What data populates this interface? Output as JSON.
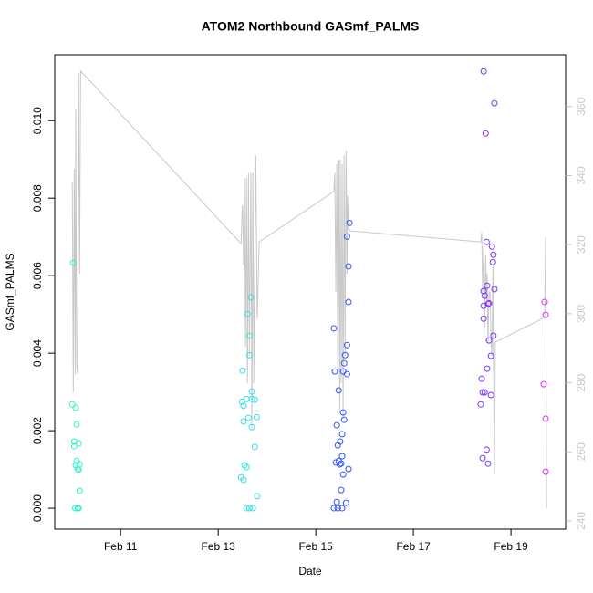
{
  "chart_data": {
    "type": "scatter",
    "title": "ATOM2 Northbound GASmf_PALMS",
    "xlabel": "Date",
    "ylabel": "GASmf_PALMS",
    "xlim": [
      9.65,
      20.12
    ],
    "ylim": [
      -0.00054,
      0.0117
    ],
    "y2lim": [
      237.6,
      375.0
    ],
    "xticks": [
      {
        "value": 11,
        "label": "Feb 11"
      },
      {
        "value": 13,
        "label": "Feb 13"
      },
      {
        "value": 15,
        "label": "Feb 15"
      },
      {
        "value": 17,
        "label": "Feb 17"
      },
      {
        "value": 19,
        "label": "Feb 19"
      }
    ],
    "yticks": [
      {
        "value": 0,
        "label": "0.000"
      },
      {
        "value": 0.002,
        "label": "0.002"
      },
      {
        "value": 0.004,
        "label": "0.004"
      },
      {
        "value": 0.006,
        "label": "0.006"
      },
      {
        "value": 0.008,
        "label": "0.008"
      },
      {
        "value": 0.01,
        "label": "0.010"
      }
    ],
    "y2ticks": [
      240,
      260,
      280,
      300,
      320,
      340,
      360
    ],
    "series": [
      {
        "color": "#2cf5c8",
        "x": [
          10.03,
          10.01,
          10.08,
          10.1,
          10.05,
          10.14,
          10.05,
          10.1,
          10.16,
          10.08,
          10.14,
          10.12,
          10.16,
          10.07,
          10.12,
          10.14
        ],
        "values": [
          0.00633,
          0.00268,
          0.00259,
          0.00216,
          0.00172,
          0.00167,
          0.0016,
          0.00122,
          0.00113,
          0.00111,
          0.00099,
          0.00101,
          0.00045,
          0,
          0,
          0
        ]
      },
      {
        "color": "#33e0e5",
        "x": [
          13.67,
          13.6,
          13.64,
          13.64,
          13.5,
          13.69,
          13.49,
          13.58,
          13.69,
          13.75,
          13.52,
          13.62,
          13.79,
          13.69,
          13.52,
          13.75,
          13.54,
          13.58,
          13.47,
          13.52,
          13.8,
          13.58,
          13.64,
          13.71
        ],
        "values": [
          0.00544,
          0.00501,
          0.00445,
          0.00395,
          0.00355,
          0.00301,
          0.00275,
          0.00282,
          0.00282,
          0.0028,
          0.00264,
          0.00233,
          0.00235,
          0.00209,
          0.00224,
          0.00158,
          0.00111,
          0.00106,
          0.0008,
          0.00073,
          0.00031,
          0,
          0,
          0
        ]
      },
      {
        "color": "#3355ff",
        "x": [
          15.37,
          15.69,
          15.64,
          15.67,
          15.67,
          15.64,
          15.6,
          15.58,
          15.56,
          15.39,
          15.64,
          15.47,
          15.56,
          15.58,
          15.43,
          15.54,
          15.5,
          15.45,
          15.54,
          15.41,
          15.49,
          15.52,
          15.47,
          15.67,
          15.56,
          15.52,
          15.43,
          15.62,
          15.37,
          15.45,
          15.54
        ],
        "values": [
          0.00464,
          0.00736,
          0.00701,
          0.00624,
          0.00532,
          0.00421,
          0.00395,
          0.00374,
          0.00353,
          0.00353,
          0.00346,
          0.00304,
          0.00247,
          0.00228,
          0.00214,
          0.00191,
          0.00172,
          0.00162,
          0.00134,
          0.00118,
          0.00113,
          0.00115,
          0.00122,
          0.00101,
          0.00087,
          0.00047,
          0.00016,
          0.00014,
          0,
          0,
          0
        ]
      },
      {
        "color": "#7f33ff",
        "x": [
          18.44,
          18.66,
          18.48,
          18.5,
          18.61,
          18.64,
          18.63,
          18.51,
          18.66,
          18.44,
          18.46,
          18.55,
          18.44,
          18.53,
          18.44,
          18.64,
          18.55,
          18.59,
          18.51,
          18.4,
          18.42,
          18.46,
          18.59,
          18.38,
          18.5,
          18.42,
          18.53
        ],
        "values": [
          0.01127,
          0.01045,
          0.00967,
          0.00687,
          0.00675,
          0.00654,
          0.00635,
          0.00574,
          0.00565,
          0.0056,
          0.00548,
          0.00529,
          0.00522,
          0.00527,
          0.00489,
          0.00445,
          0.00433,
          0.00393,
          0.0036,
          0.00334,
          0.00299,
          0.00299,
          0.00292,
          0.00268,
          0.00151,
          0.00129,
          0.00115
        ]
      },
      {
        "color": "#d633f0",
        "x": [
          19.69,
          19.71,
          19.67,
          19.71,
          19.71
        ],
        "values": [
          0.00532,
          0.00499,
          0.0032,
          0.00231,
          0.00094
        ]
      },
      {
        "type": "line",
        "axis": "y2",
        "color": "#c8c8c8",
        "x": [
          10.01,
          10.03,
          10.05,
          10.07,
          10.08,
          10.1,
          10.12,
          10.14,
          10.16,
          10.18,
          13.47,
          13.49,
          13.5,
          13.52,
          13.54,
          13.56,
          13.58,
          13.6,
          13.62,
          13.64,
          13.67,
          13.69,
          13.71,
          13.73,
          13.77,
          13.8,
          13.84,
          15.37,
          15.39,
          15.41,
          15.43,
          15.45,
          15.47,
          15.49,
          15.5,
          15.52,
          15.54,
          15.56,
          15.58,
          15.6,
          15.62,
          15.64,
          15.65,
          15.67,
          15.69,
          18.38,
          18.4,
          18.42,
          18.44,
          18.46,
          18.48,
          18.5,
          18.51,
          18.53,
          18.55,
          18.57,
          18.59,
          18.61,
          18.63,
          18.64,
          18.66,
          18.68,
          19.69,
          19.71,
          19.73
        ],
        "values": [
          338.0,
          277.3,
          342.0,
          282.5,
          359.2,
          285.2,
          282.5,
          369.7,
          311.6,
          370.3,
          320.3,
          330.1,
          331.4,
          314.2,
          339.3,
          290.5,
          339.3,
          279.9,
          340.7,
          287.8,
          340.7,
          266.7,
          340.7,
          279.9,
          345.9,
          298.4,
          320.8,
          335.4,
          340.7,
          306.3,
          343.3,
          282.5,
          344.6,
          272.0,
          344.6,
          279.9,
          343.3,
          269.3,
          345.9,
          287.8,
          347.3,
          311.6,
          334.1,
          324.8,
          324.0,
          320.8,
          323.5,
          306.3,
          319.5,
          295.7,
          317.0,
          303.7,
          311.6,
          291.8,
          306.3,
          306.3,
          291.8,
          287.8,
          314.2,
          291.8,
          253.5,
          291.8,
          298.9,
          322.2,
          243.7
        ]
      }
    ]
  }
}
